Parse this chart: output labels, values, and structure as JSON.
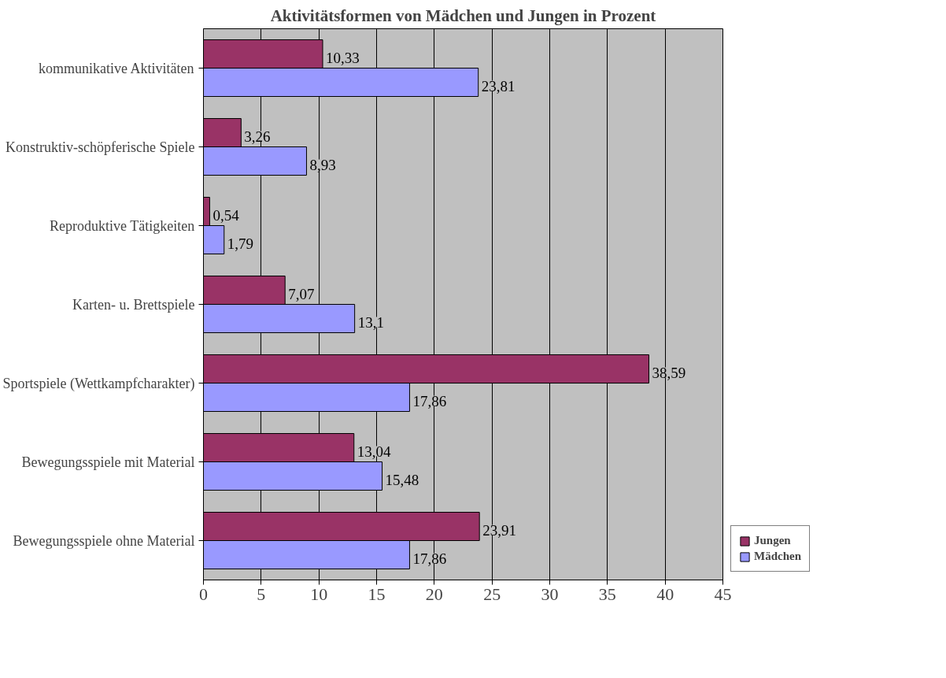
{
  "chart_data": {
    "type": "bar",
    "orientation": "horizontal",
    "title": "Aktivitätsformen von Mädchen und Jungen in Prozent",
    "categories": [
      "kommunikative Aktivitäten",
      "Konstruktiv-schöpferische Spiele",
      "Reproduktive Tätigkeiten",
      "Karten- u. Brettspiele",
      "Sportspiele (Wettkampfcharakter)",
      "Bewegungsspiele mit Material",
      "Bewegungsspiele ohne Material"
    ],
    "series": [
      {
        "name": "Jungen",
        "color": "#993366",
        "values": [
          10.33,
          3.26,
          0.54,
          7.07,
          38.59,
          13.04,
          23.91
        ],
        "value_labels": [
          "10,33",
          "3,26",
          "0,54",
          "7,07",
          "38,59",
          "13,04",
          "23,91"
        ]
      },
      {
        "name": "Mädchen",
        "color": "#9999ff",
        "values": [
          23.81,
          8.93,
          1.79,
          13.1,
          17.86,
          15.48,
          17.86
        ],
        "value_labels": [
          "23,81",
          "8,93",
          "1,79",
          "13,1",
          "17,86",
          "15,48",
          "17,86"
        ]
      }
    ],
    "xlim": [
      0,
      45
    ],
    "xticks": [
      0,
      5,
      10,
      15,
      20,
      25,
      30,
      35,
      40,
      45
    ],
    "grid": "x",
    "legend": "right"
  }
}
